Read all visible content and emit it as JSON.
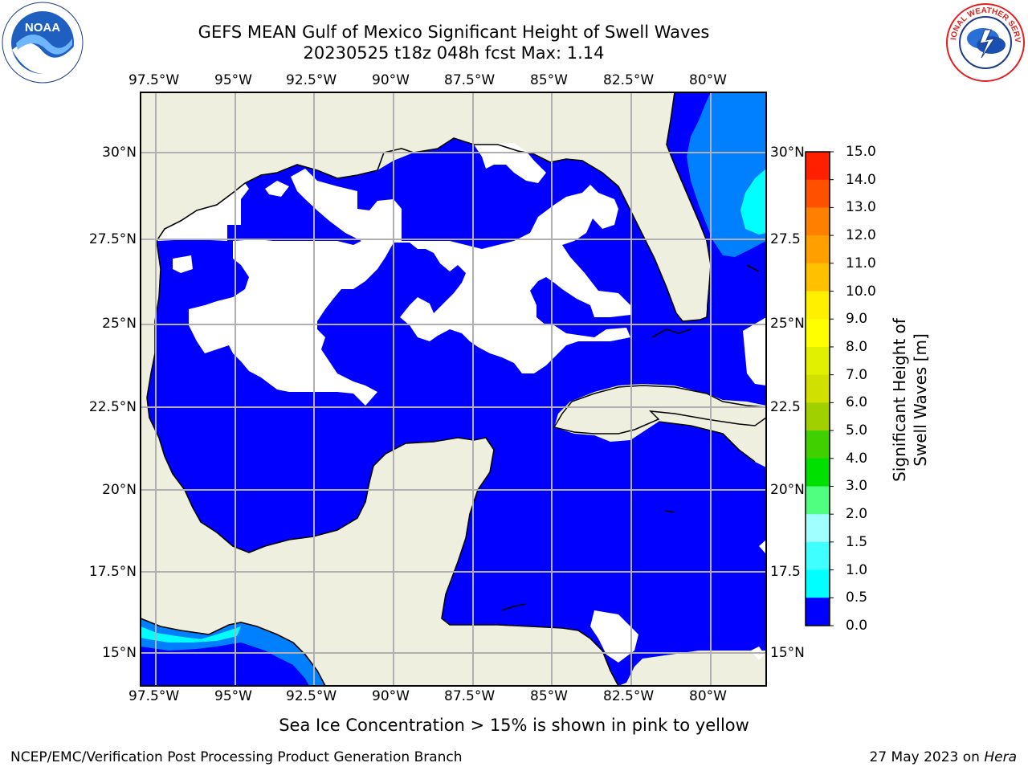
{
  "header": {
    "title_line1": "GEFS MEAN Gulf of Mexico Significant Height of Swell Waves",
    "title_line2": "20230525 t18z 048h fcst   Max: 1.14"
  },
  "logos": {
    "left": {
      "name": "noaa-logo",
      "text": "NOAA"
    },
    "right": {
      "name": "nws-logo",
      "text": "NATIONAL WEATHER SERVICE"
    }
  },
  "map": {
    "lon_ticks": [
      "97.5°W",
      "95°W",
      "92.5°W",
      "90°W",
      "87.5°W",
      "85°W",
      "82.5°W",
      "80°W"
    ],
    "lat_ticks_left": [
      "30°N",
      "27.5°N",
      "25°N",
      "22.5°N",
      "20°N",
      "17.5°N",
      "15°N"
    ],
    "lat_ticks_right": [
      "30°N",
      "27.5",
      "25°N",
      "22.5",
      "20°N",
      "17.5",
      "15°N"
    ],
    "colors": {
      "land": "#efefdf",
      "low": "#0000ff",
      "mid": "#0080ff",
      "cyan": "#00ffff",
      "grid": "#b0b0b0"
    }
  },
  "colorbar": {
    "label": "Significant Height of Swell Waves [m]",
    "ticks": [
      "15.0",
      "14.0",
      "13.0",
      "12.0",
      "11.0",
      "10.0",
      "9.0",
      "8.0",
      "7.0",
      "6.0",
      "5.0",
      "4.0",
      "3.0",
      "2.0",
      "1.5",
      "1.0",
      "0.5",
      "0.0"
    ],
    "colors": [
      "#0000ff",
      "#0080ff",
      "#00ffff",
      "#40ffff",
      "#a0ffff",
      "#50ff80",
      "#00e000",
      "#40d000",
      "#a0d000",
      "#d0e000",
      "#e0f000",
      "#ffff00",
      "#fff000",
      "#ffc000",
      "#ffa000",
      "#ff8000",
      "#ff5000",
      "#ff2000",
      "#ff0000"
    ]
  },
  "footer": {
    "note": "Sea Ice Concentration > 15% is shown in pink to yellow",
    "left": "NCEP/EMC/Verification Post Processing Product Generation Branch",
    "right_prefix": "27 May 2023 on ",
    "right_host": "Hera"
  }
}
